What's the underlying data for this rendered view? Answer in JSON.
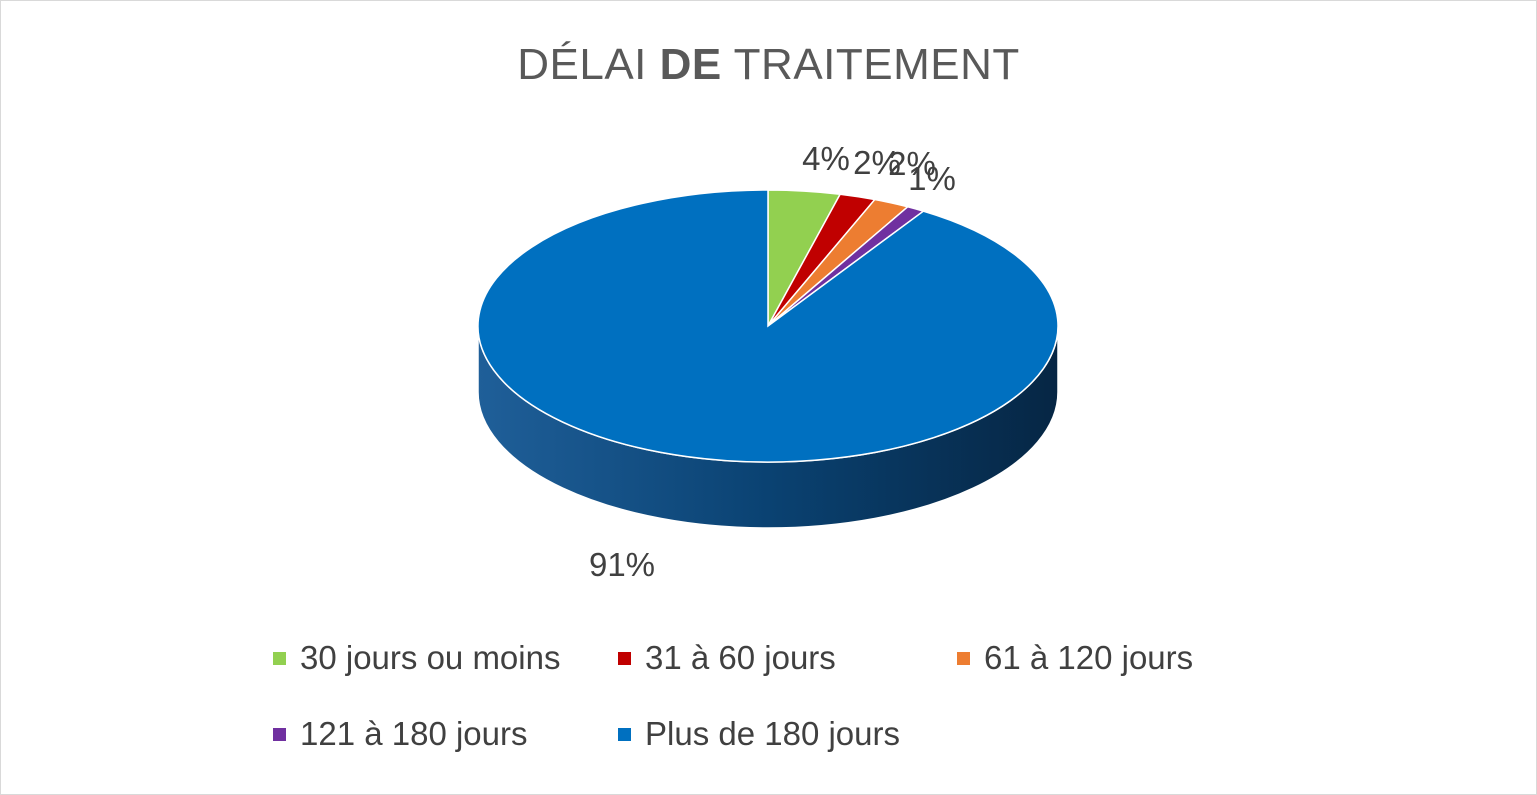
{
  "chart_data": {
    "type": "pie",
    "title_parts": [
      "DÉLAI ",
      "DE",
      " TRAITEMENT"
    ],
    "slices": [
      {
        "name": "30 jours ou moins",
        "value": 4,
        "label": "4%",
        "color": "#92d050"
      },
      {
        "name": "31 à 60 jours",
        "value": 2,
        "label": "2%",
        "color": "#c00000"
      },
      {
        "name": "61 à 120 jours",
        "value": 2,
        "label": "2%",
        "color": "#ed7d31"
      },
      {
        "name": "121 à 180 jours",
        "value": 1,
        "label": "1%",
        "color": "#7030a0"
      },
      {
        "name": "Plus de 180 jours",
        "value": 91,
        "label": "91%",
        "color": "#0070c0"
      }
    ],
    "legend_position": "bottom"
  }
}
